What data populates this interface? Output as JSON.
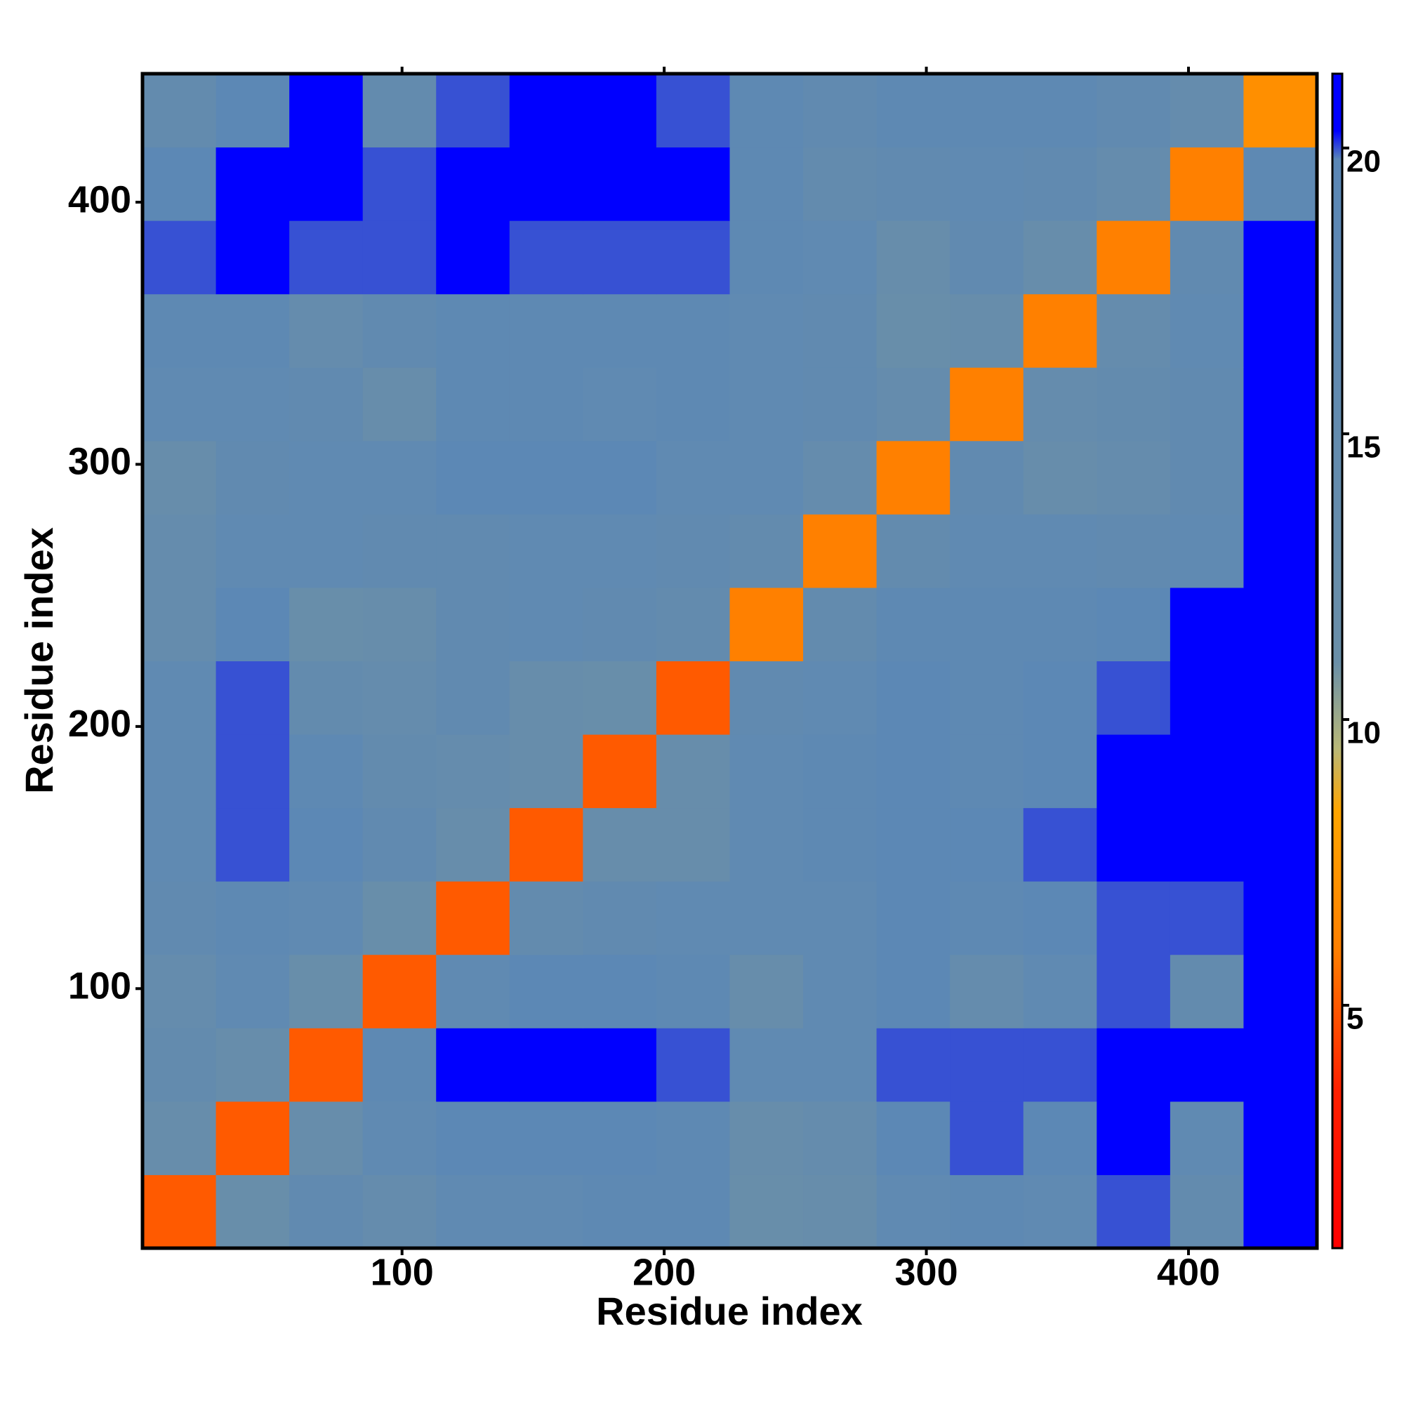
{
  "chart_data": {
    "type": "heatmap",
    "x_label": "Residue index",
    "y_label": "Residue index",
    "xlim": [
      1,
      449
    ],
    "ylim": [
      1,
      449
    ],
    "xticks": [
      100,
      200,
      300,
      400
    ],
    "yticks": [
      100,
      200,
      300,
      400
    ],
    "bin_edges": [
      1,
      29,
      57,
      85,
      113,
      141,
      169,
      197,
      225,
      253,
      281,
      309,
      337,
      365,
      393,
      421,
      449
    ],
    "values": [
      [
        5,
        12,
        16,
        14,
        17,
        17,
        18,
        18,
        12,
        13,
        17,
        18,
        17,
        20,
        15,
        21
      ],
      [
        13,
        5,
        13,
        17,
        19,
        19,
        19,
        18,
        13,
        14,
        19,
        20,
        19,
        21,
        17,
        21
      ],
      [
        15,
        13,
        5,
        18,
        21,
        21,
        21,
        20,
        17,
        17,
        20,
        20,
        20,
        21,
        21,
        21
      ],
      [
        14,
        17,
        12,
        5,
        17,
        19,
        19,
        18,
        13,
        17,
        19,
        14,
        17,
        20,
        15,
        21
      ],
      [
        16,
        18,
        17,
        12,
        5,
        15,
        16,
        17,
        17,
        17,
        19,
        18,
        19,
        20,
        20,
        21
      ],
      [
        17,
        20,
        19,
        16,
        13,
        5,
        13,
        13,
        17,
        18,
        19,
        19,
        20,
        21,
        21,
        21
      ],
      [
        17,
        20,
        18,
        15,
        14,
        13,
        5,
        13,
        17,
        18,
        19,
        18,
        19,
        21,
        21,
        21
      ],
      [
        17,
        20,
        15,
        14,
        16,
        13,
        12,
        5,
        16,
        17,
        19,
        18,
        19,
        20,
        21,
        21
      ],
      [
        14,
        19,
        12,
        13,
        16,
        17,
        16,
        15,
        6,
        15,
        18,
        18,
        18,
        19,
        21,
        21
      ],
      [
        14,
        17,
        17,
        16,
        16,
        17,
        17,
        16,
        15,
        6,
        15,
        17,
        17,
        16,
        17,
        21
      ],
      [
        13,
        16,
        17,
        17,
        19,
        19,
        19,
        17,
        17,
        14,
        6,
        16,
        13,
        14,
        16,
        21
      ],
      [
        17,
        17,
        16,
        13,
        18,
        18,
        17,
        18,
        17,
        16,
        14,
        6,
        14,
        15,
        16,
        21
      ],
      [
        18,
        18,
        14,
        16,
        18,
        18,
        18,
        18,
        17,
        16,
        12,
        13,
        6,
        14,
        17,
        21
      ],
      [
        20,
        21,
        20,
        20,
        21,
        20,
        20,
        20,
        18,
        17,
        13,
        16,
        13,
        6,
        16,
        21
      ],
      [
        19,
        21,
        21,
        20,
        21,
        21,
        21,
        21,
        18,
        15,
        16,
        17,
        16,
        14,
        6,
        18
      ],
      [
        15,
        19,
        21,
        15,
        20,
        21,
        21,
        20,
        18,
        16,
        18,
        18,
        18,
        16,
        14,
        7
      ]
    ],
    "clim": [
      0.75,
      21.3
    ],
    "cticks": [
      5,
      10,
      15,
      20
    ],
    "colorscale": [
      [
        0.75,
        "#ff0000"
      ],
      [
        3.5,
        "#ff2000"
      ],
      [
        6,
        "#ff8000"
      ],
      [
        8.4,
        "#ffa500"
      ],
      [
        9.5,
        "#b8b878"
      ],
      [
        11,
        "#6a8fa8"
      ],
      [
        19.8,
        "#5b87b6"
      ],
      [
        20.3,
        "#0000ff"
      ],
      [
        21.3,
        "#0000ff"
      ]
    ]
  }
}
